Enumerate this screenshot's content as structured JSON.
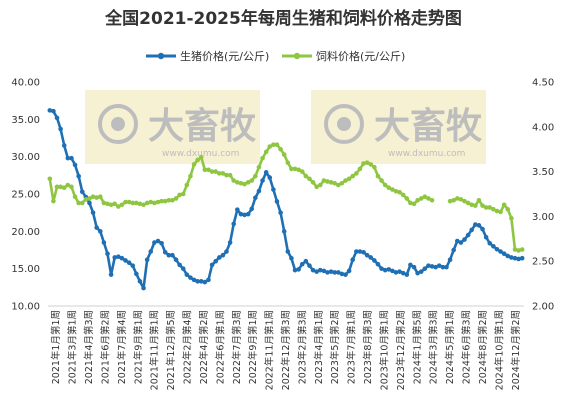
{
  "chart_data": {
    "type": "line",
    "title": "全国2021-2025年每周生猪和饲料价格走势图",
    "legend_position": "top-center",
    "grid": false,
    "y_left": {
      "ylim": [
        10,
        40
      ],
      "ticks": [
        "10.00",
        "15.00",
        "20.00",
        "25.00",
        "30.00",
        "35.00",
        "40.00"
      ]
    },
    "y_right": {
      "ylim": [
        2.0,
        4.5
      ],
      "ticks": [
        "2.00",
        "2.50",
        "3.00",
        "3.50",
        "4.00",
        "4.50"
      ]
    },
    "x_tick_labels": [
      "2021年1月第1周",
      "2021年3月第1周",
      "2021年4月第3周",
      "2021年6月第2周",
      "2021年7月第4周",
      "2021年9月第1周",
      "2021年11月第1周",
      "2021年12月第5周",
      "2022年2月第4周",
      "2022年4月第2周",
      "2022年6月第1周",
      "2022年7月第3周",
      "2022年9月第1周",
      "2022年11月第1周",
      "2022年12月第3周",
      "2023年2月第3周",
      "2023年4月第1周",
      "2023年5月第2周",
      "2023年7月第1周",
      "2023年8月第3周",
      "2023年10月第1周",
      "2023年12月第2周",
      "2024年1月第5周",
      "2024年3月第3周",
      "2024年5月第1周",
      "2024年6月第3周",
      "2024年8月第2周",
      "2024年10月第1周",
      "2024年12月第2周"
    ],
    "watermark": {
      "brand": "大畜牧",
      "site": "www.dxumu.com"
    },
    "series": [
      {
        "name": "生猪价格(元/公斤)",
        "axis": "left",
        "color": "#1f6fb5",
        "values": [
          36.2,
          36.1,
          35.2,
          33.7,
          31.5,
          29.8,
          29.8,
          28.9,
          27.4,
          25.3,
          24.6,
          23.8,
          22.5,
          20.5,
          20.0,
          18.5,
          17.0,
          14.2,
          16.5,
          16.6,
          16.4,
          16.1,
          15.8,
          15.4,
          14.3,
          13.3,
          12.4,
          16.2,
          17.3,
          18.5,
          18.7,
          18.4,
          17.2,
          16.8,
          16.8,
          16.2,
          15.5,
          15.0,
          14.2,
          13.8,
          13.5,
          13.3,
          13.3,
          13.2,
          13.5,
          15.5,
          16.0,
          16.5,
          16.8,
          17.3,
          18.5,
          21.0,
          22.9,
          22.3,
          22.2,
          22.3,
          23.0,
          24.5,
          25.4,
          26.8,
          27.9,
          27.2,
          25.6,
          24.0,
          22.5,
          20.0,
          17.3,
          16.4,
          14.8,
          14.9,
          15.6,
          16.0,
          15.4,
          14.8,
          14.6,
          14.8,
          14.7,
          14.5,
          14.6,
          14.5,
          14.5,
          14.3,
          14.2,
          14.7,
          16.2,
          17.3,
          17.3,
          17.2,
          16.8,
          16.5,
          16.1,
          15.6,
          15.0,
          14.8,
          14.9,
          14.7,
          14.5,
          14.6,
          14.4,
          14.2,
          15.5,
          15.2,
          14.4,
          14.6,
          15.0,
          15.4,
          15.3,
          15.2,
          15.4,
          15.2,
          15.2,
          16.2,
          17.5,
          18.7,
          18.5,
          18.9,
          19.5,
          20.2,
          20.9,
          20.8,
          20.3,
          19.2,
          18.4,
          18.0,
          17.6,
          17.3,
          17.0,
          16.7,
          16.5,
          16.4,
          16.3,
          16.4
        ]
      },
      {
        "name": "饲料价格(元/公斤)",
        "axis": "right",
        "color": "#8ec641",
        "values": [
          3.42,
          3.17,
          3.33,
          3.33,
          3.32,
          3.35,
          3.33,
          3.22,
          3.15,
          3.15,
          3.19,
          3.2,
          3.22,
          3.21,
          3.22,
          3.15,
          3.14,
          3.13,
          3.14,
          3.11,
          3.13,
          3.16,
          3.16,
          3.15,
          3.15,
          3.14,
          3.13,
          3.15,
          3.16,
          3.15,
          3.16,
          3.17,
          3.17,
          3.18,
          3.18,
          3.2,
          3.24,
          3.25,
          3.35,
          3.45,
          3.58,
          3.63,
          3.66,
          3.52,
          3.52,
          3.5,
          3.5,
          3.48,
          3.48,
          3.46,
          3.46,
          3.4,
          3.38,
          3.37,
          3.36,
          3.38,
          3.4,
          3.45,
          3.55,
          3.65,
          3.72,
          3.78,
          3.8,
          3.8,
          3.75,
          3.69,
          3.6,
          3.53,
          3.53,
          3.52,
          3.5,
          3.45,
          3.42,
          3.38,
          3.33,
          3.35,
          3.4,
          3.39,
          3.38,
          3.37,
          3.35,
          3.37,
          3.4,
          3.42,
          3.45,
          3.48,
          3.53,
          3.59,
          3.6,
          3.58,
          3.55,
          3.45,
          3.4,
          3.35,
          3.32,
          3.3,
          3.28,
          3.27,
          3.24,
          3.2,
          3.15,
          3.14,
          3.18,
          3.2,
          3.22,
          3.2,
          3.18,
          null,
          null,
          null,
          null,
          3.17,
          3.18,
          3.2,
          3.19,
          3.17,
          3.15,
          3.13,
          3.12,
          3.18,
          3.12,
          3.1,
          3.1,
          3.08,
          3.06,
          3.05,
          3.13,
          3.08,
          2.98,
          2.63,
          2.62,
          2.63
        ]
      }
    ]
  }
}
